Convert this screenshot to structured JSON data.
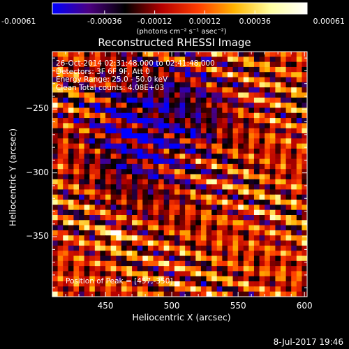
{
  "chart_data": {
    "type": "heatmap",
    "title": "Reconstructed RHESSI Image",
    "xlabel": "Heliocentric X (arcsec)",
    "ylabel": "Heliocentric Y (arcsec)",
    "xlim": [
      410,
      602
    ],
    "ylim": [
      -397,
      -205
    ],
    "x_ticks": [
      450,
      500,
      550,
      600
    ],
    "y_ticks": [
      -250,
      -300,
      -350
    ],
    "colorbar": {
      "range": [
        -0.00061,
        0.00061
      ],
      "tick_labels": [
        "-0.00061",
        "-0.00036",
        "-0.00012",
        "0.00012",
        "0.00036",
        "0.00061"
      ],
      "units_text": "(photons cm⁻² s⁻¹ asec⁻²)",
      "colormap": [
        "#0000ff",
        "#4b0082",
        "#000000",
        "#b40000",
        "#ff3c00",
        "#ffb400",
        "#ffffa0",
        "#ffffff"
      ]
    },
    "info_lines": [
      "26-Oct-2014 02:31:48.000 to 02:41:48.000",
      "Detectors: 3F 6F 9F, Att 0",
      "Energy Range: 25.0 - 50.0 keV",
      "Clean      Total counts: 4.08E+03"
    ],
    "peak_text": "Position of Peak = [457,-350]",
    "peak_position": [
      457,
      -350
    ]
  },
  "footer": {
    "date": "8-Jul-2017 19:46"
  }
}
